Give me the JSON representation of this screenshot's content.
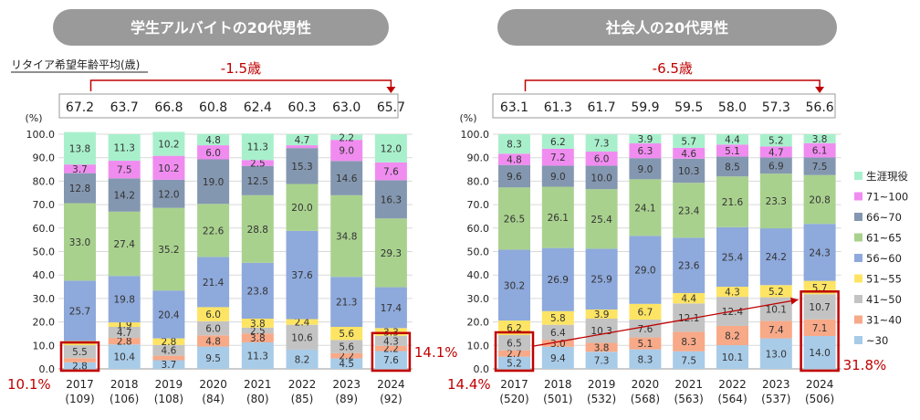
{
  "colors": {
    "pill": "#9a9a9a",
    "highlight": "#c00000",
    "grid": "#d9d9d9",
    "axis": "#999999",
    "segments": [
      "#a8cbe8",
      "#f7a988",
      "#c3c3c3",
      "#fde464",
      "#8ea9db",
      "#a9d18e",
      "#8497b0",
      "#f08cf0",
      "#a8f0cc"
    ]
  },
  "chart_data": [
    {
      "type": "stacked_bar",
      "title": "学生アルバイトの20代男性",
      "subtitle": "リタイア希望年齢平均(歳)",
      "ylabel": "(%)",
      "ylim": [
        0,
        100
      ],
      "yticks": [
        "0.0",
        "10.0",
        "20.0",
        "30.0",
        "40.0",
        "50.0",
        "60.0",
        "70.0",
        "80.0",
        "90.0",
        "100.0"
      ],
      "categories": [
        "2017",
        "2018",
        "2019",
        "2020",
        "2021",
        "2022",
        "2023",
        "2024"
      ],
      "sample_sizes": [
        "(109)",
        "(106)",
        "(108)",
        "(84)",
        "(80)",
        "(85)",
        "(89)",
        "(92)"
      ],
      "avg_retire_age": [
        "67.2",
        "63.7",
        "66.8",
        "60.8",
        "62.4",
        "60.3",
        "63.0",
        "65.7"
      ],
      "change_label": "-1.5歳",
      "highlight_2017": "10.1%",
      "highlight_2024": "14.1%",
      "series": [
        {
          "name": "~30",
          "values": [
            2.8,
            10.4,
            3.7,
            9.5,
            11.3,
            8.2,
            4.5,
            7.6
          ],
          "labels": [
            "2.8",
            "10.4",
            "3.7",
            "9.5",
            "11.3",
            "8.2",
            "4.5",
            "7.6"
          ]
        },
        {
          "name": "31~40",
          "values": [
            1.8,
            2.8,
            1.9,
            4.8,
            3.8,
            0.0,
            2.2,
            2.2
          ],
          "labels": [
            "",
            "2.8",
            "",
            "4.8",
            "3.8",
            "",
            "2.2",
            "2.2"
          ]
        },
        {
          "name": "41~50",
          "values": [
            5.5,
            4.7,
            4.6,
            6.0,
            2.5,
            10.6,
            5.6,
            4.3
          ],
          "labels": [
            "5.5",
            "4.7",
            "4.6",
            "6.0",
            "2.5",
            "10.6",
            "5.6",
            "4.3"
          ]
        },
        {
          "name": "51~55",
          "values": [
            1.8,
            1.9,
            2.8,
            6.0,
            3.8,
            2.4,
            5.6,
            3.3
          ],
          "labels": [
            "",
            "1.9",
            "2.8",
            "6.0",
            "3.8",
            "2.4",
            "5.6",
            "3.3"
          ]
        },
        {
          "name": "56~60",
          "values": [
            25.7,
            19.8,
            20.4,
            21.4,
            23.8,
            37.6,
            21.3,
            17.4
          ],
          "labels": [
            "25.7",
            "19.8",
            "20.4",
            "21.4",
            "23.8",
            "37.6",
            "21.3",
            "17.4"
          ]
        },
        {
          "name": "61~65",
          "values": [
            33.0,
            27.4,
            35.2,
            22.6,
            28.8,
            20.0,
            34.8,
            29.3
          ],
          "labels": [
            "33.0",
            "27.4",
            "35.2",
            "22.6",
            "28.8",
            "20.0",
            "34.8",
            "29.3"
          ]
        },
        {
          "name": "66~70",
          "values": [
            12.8,
            14.2,
            12.0,
            19.0,
            12.5,
            15.3,
            14.6,
            16.3
          ],
          "labels": [
            "12.8",
            "14.2",
            "12.0",
            "19.0",
            "12.5",
            "15.3",
            "14.6",
            "16.3"
          ]
        },
        {
          "name": "71~100",
          "values": [
            3.7,
            7.5,
            10.2,
            6.0,
            2.5,
            1.2,
            9.0,
            7.6
          ],
          "labels": [
            "3.7",
            "7.5",
            "10.2",
            "6.0",
            "2.5",
            "",
            "9.0",
            "7.6"
          ]
        },
        {
          "name": "生涯現役",
          "values": [
            13.8,
            11.3,
            10.2,
            4.8,
            11.3,
            4.7,
            2.2,
            12.0
          ],
          "labels": [
            "13.8",
            "11.3",
            "10.2",
            "4.8",
            "11.3",
            "4.7",
            "2.2",
            "12.0"
          ]
        }
      ]
    },
    {
      "type": "stacked_bar",
      "title": "社会人の20代男性",
      "ylabel": "(%)",
      "ylim": [
        0,
        100
      ],
      "yticks": [
        "0.0",
        "10.0",
        "20.0",
        "30.0",
        "40.0",
        "50.0",
        "60.0",
        "70.0",
        "80.0",
        "90.0",
        "100.0"
      ],
      "categories": [
        "2017",
        "2018",
        "2019",
        "2020",
        "2021",
        "2022",
        "2023",
        "2024"
      ],
      "sample_sizes": [
        "(520)",
        "(501)",
        "(532)",
        "(568)",
        "(563)",
        "(564)",
        "(537)",
        "(506)"
      ],
      "avg_retire_age": [
        "63.1",
        "61.3",
        "61.7",
        "59.9",
        "59.5",
        "58.0",
        "57.3",
        "56.6"
      ],
      "change_label": "-6.5歳",
      "highlight_2017": "14.4%",
      "highlight_2024": "31.8%",
      "legend": [
        "生涯現役",
        "71~100",
        "66~70",
        "61~65",
        "56~60",
        "51~55",
        "41~50",
        "31~40",
        "~30"
      ],
      "series": [
        {
          "name": "~30",
          "values": [
            5.2,
            9.4,
            7.3,
            8.3,
            7.5,
            10.1,
            13.0,
            14.0
          ],
          "labels": [
            "5.2",
            "9.4",
            "7.3",
            "8.3",
            "7.5",
            "10.1",
            "13.0",
            "14.0"
          ]
        },
        {
          "name": "31~40",
          "values": [
            2.7,
            3.0,
            3.8,
            5.1,
            8.3,
            8.2,
            7.4,
            7.1
          ],
          "labels": [
            "2.7",
            "3.0",
            "3.8",
            "5.1",
            "8.3",
            "8.2",
            "7.4",
            "7.1"
          ]
        },
        {
          "name": "41~50",
          "values": [
            6.5,
            6.4,
            10.3,
            7.6,
            12.1,
            12.4,
            10.1,
            10.7
          ],
          "labels": [
            "6.5",
            "6.4",
            "10.3",
            "7.6",
            "12.1",
            "12.4",
            "10.1",
            "10.7"
          ]
        },
        {
          "name": "51~55",
          "values": [
            6.2,
            5.8,
            3.9,
            6.7,
            4.4,
            4.3,
            5.2,
            5.7
          ],
          "labels": [
            "6.2",
            "5.8",
            "3.9",
            "6.7",
            "4.4",
            "4.3",
            "5.2",
            "5.7"
          ]
        },
        {
          "name": "56~60",
          "values": [
            30.2,
            26.9,
            25.9,
            29.0,
            23.6,
            25.4,
            24.2,
            24.3
          ],
          "labels": [
            "30.2",
            "26.9",
            "25.9",
            "29.0",
            "23.6",
            "25.4",
            "24.2",
            "24.3"
          ]
        },
        {
          "name": "61~65",
          "values": [
            26.5,
            26.1,
            25.4,
            24.1,
            23.4,
            21.6,
            23.3,
            20.8
          ],
          "labels": [
            "26.5",
            "26.1",
            "25.4",
            "24.1",
            "23.4",
            "21.6",
            "23.3",
            "20.8"
          ]
        },
        {
          "name": "66~70",
          "values": [
            9.6,
            9.0,
            10.0,
            9.0,
            10.3,
            8.5,
            6.9,
            7.5
          ],
          "labels": [
            "9.6",
            "9.0",
            "10.0",
            "9.0",
            "10.3",
            "8.5",
            "6.9",
            "7.5"
          ]
        },
        {
          "name": "71~100",
          "values": [
            4.8,
            7.2,
            6.0,
            6.3,
            4.6,
            5.1,
            4.7,
            6.1
          ],
          "labels": [
            "4.8",
            "7.2",
            "6.0",
            "6.3",
            "4.6",
            "5.1",
            "4.7",
            "6.1"
          ]
        },
        {
          "name": "生涯現役",
          "values": [
            8.3,
            6.2,
            7.3,
            3.9,
            5.7,
            4.4,
            5.2,
            3.8
          ],
          "labels": [
            "8.3",
            "6.2",
            "7.3",
            "3.9",
            "5.7",
            "4.4",
            "5.2",
            "3.8"
          ]
        }
      ]
    }
  ]
}
